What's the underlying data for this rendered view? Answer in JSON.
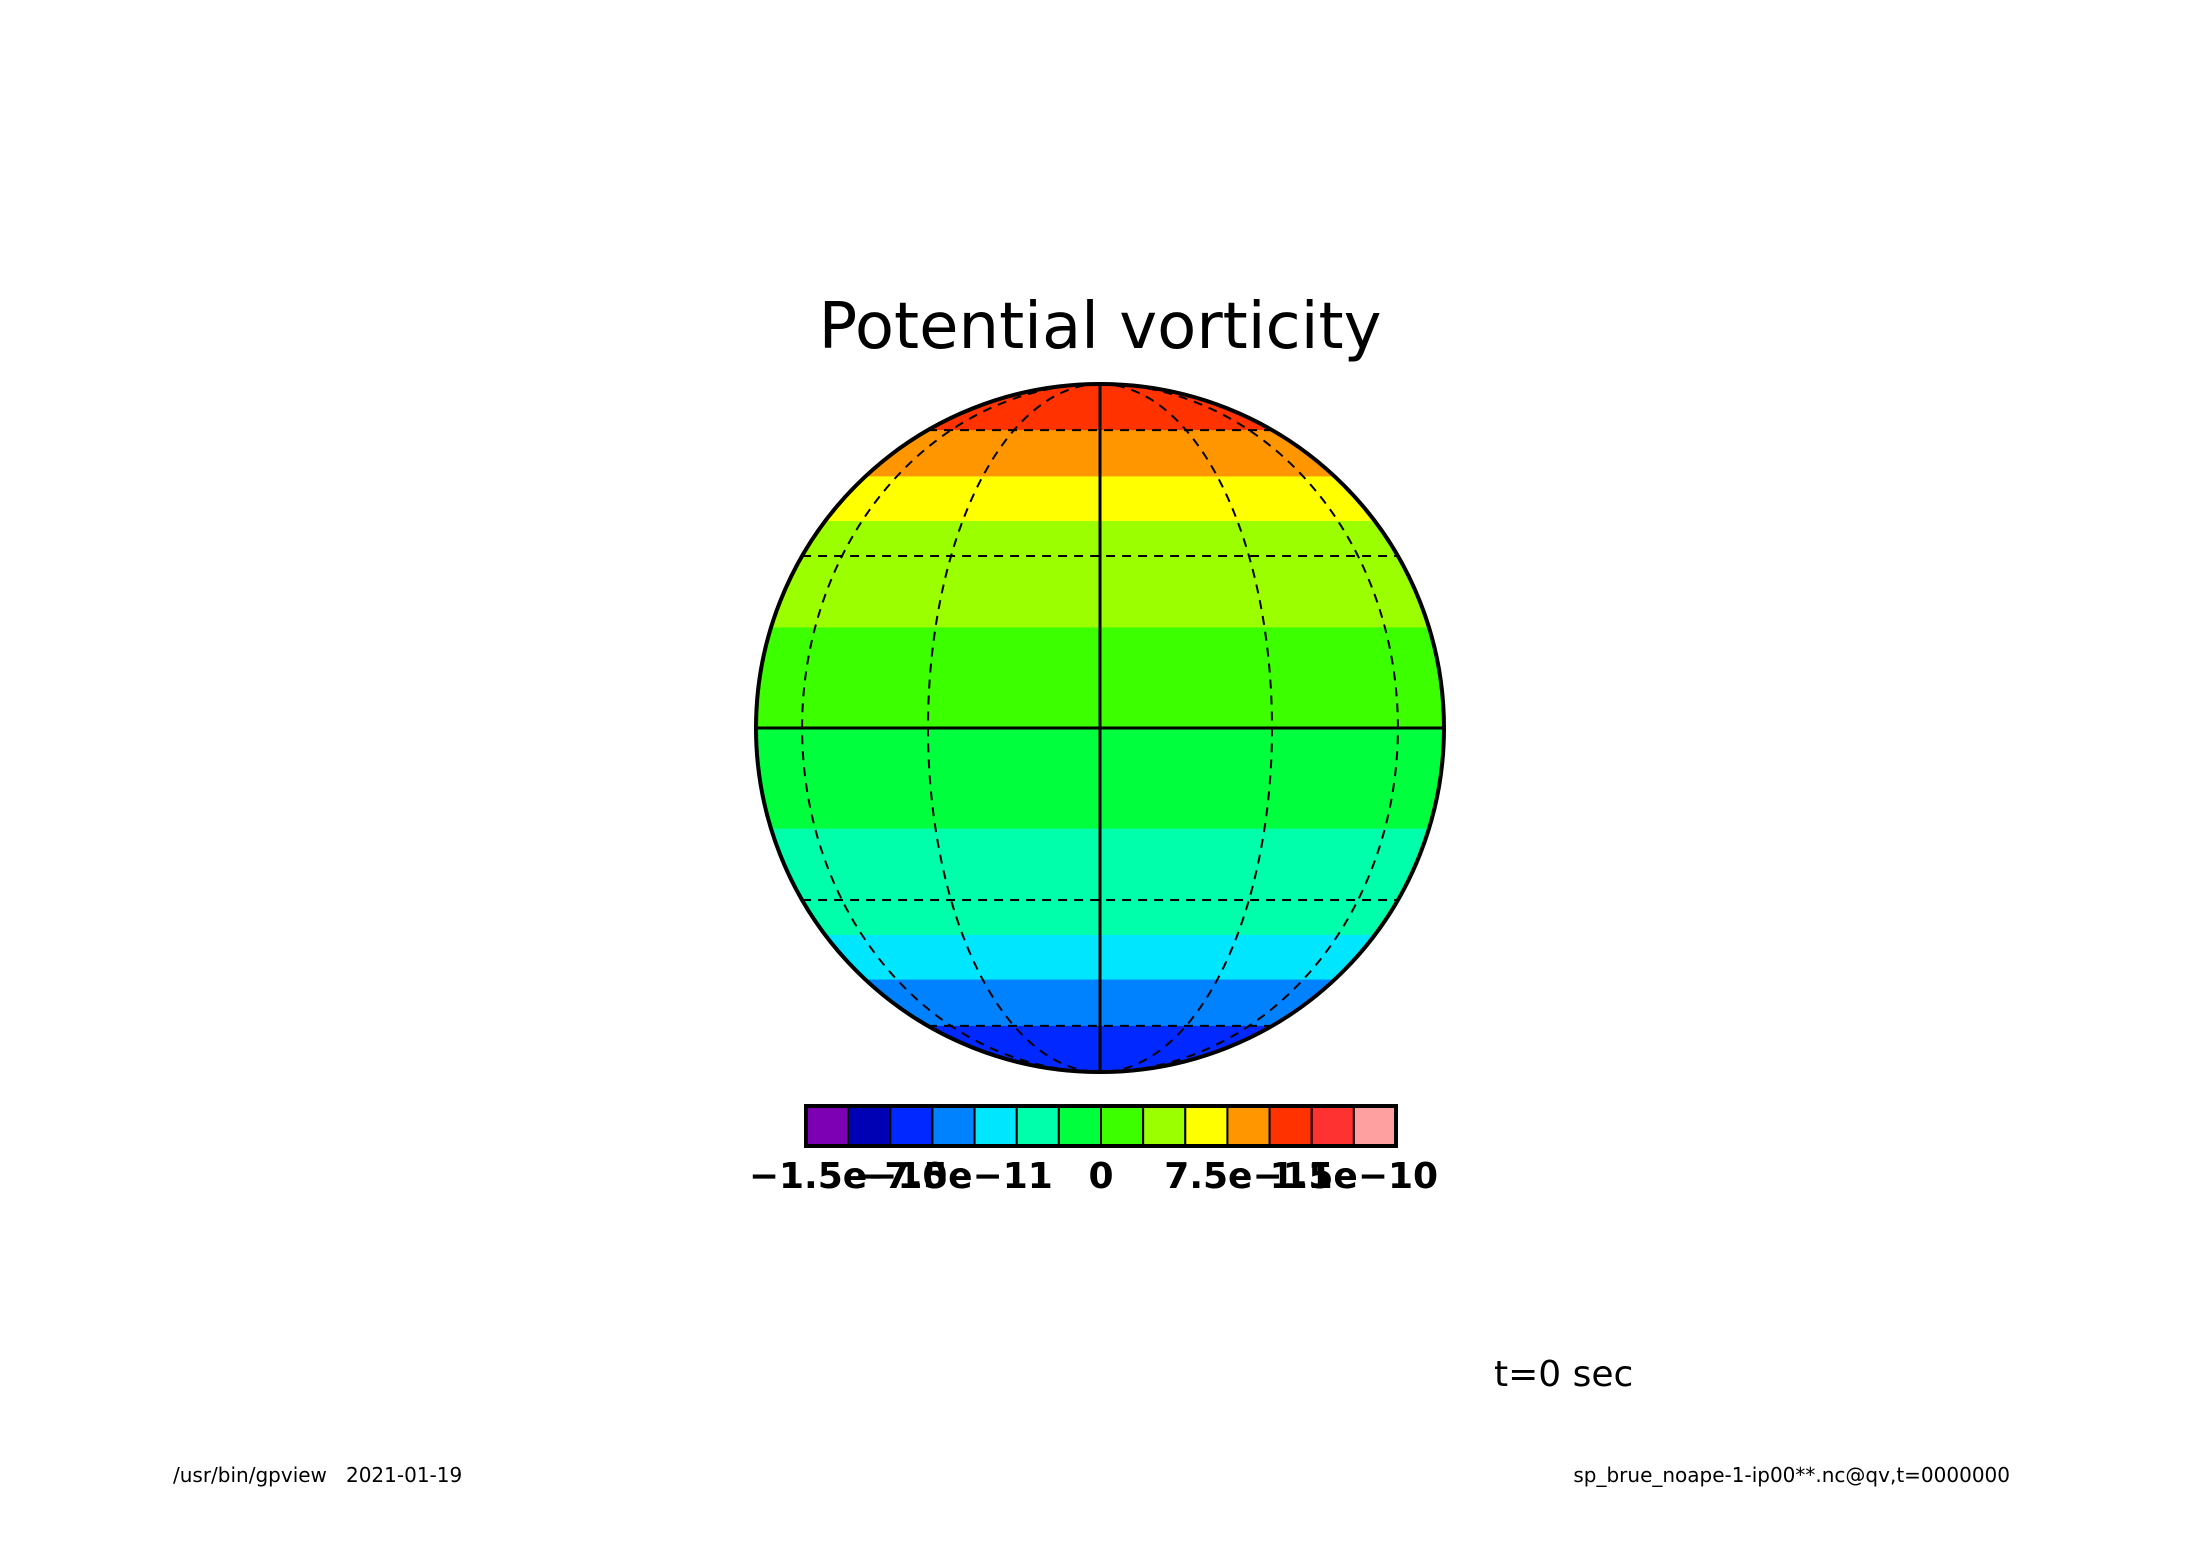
{
  "chart_data": {
    "type": "heatmap",
    "title": "Potential vorticity",
    "projection": "orthographic",
    "field": "zonal bands of potential vorticity (latitude-dependent)",
    "colorbar": {
      "colors": [
        "#7d00b4",
        "#0000b4",
        "#0028ff",
        "#0082ff",
        "#00e6ff",
        "#00ffaa",
        "#00ff3c",
        "#3cff00",
        "#9bff00",
        "#ffff00",
        "#ff9600",
        "#ff3200",
        "#ff3232",
        "#ffa0a0"
      ],
      "tick_labels": [
        {
          "text": "-1.5e-10",
          "boundary": 1
        },
        {
          "text": "-7.5e-11",
          "boundary": 3.5
        },
        {
          "text": "0",
          "boundary": 7
        },
        {
          "text": "7.5e-11",
          "boundary": 10.5
        },
        {
          "text": "1.5e-10",
          "boundary": 13
        }
      ],
      "levels": [
        -1.5e-10,
        1.5e-10
      ]
    },
    "bands": [
      {
        "lat_from": 90,
        "lat_to": 60,
        "color": "#ff3200"
      },
      {
        "lat_from": 60,
        "lat_to": 47,
        "color": "#ff9600"
      },
      {
        "lat_from": 47,
        "lat_to": 37,
        "color": "#ffff00"
      },
      {
        "lat_from": 37,
        "lat_to": 17,
        "color": "#9bff00"
      },
      {
        "lat_from": 17,
        "lat_to": 0,
        "color": "#3cff00"
      },
      {
        "lat_from": 0,
        "lat_to": -17,
        "color": "#00ff3c"
      },
      {
        "lat_from": -17,
        "lat_to": -37,
        "color": "#00ffaa"
      },
      {
        "lat_from": -37,
        "lat_to": -47,
        "color": "#00e6ff"
      },
      {
        "lat_from": -47,
        "lat_to": -60,
        "color": "#0082ff"
      },
      {
        "lat_from": -60,
        "lat_to": -90,
        "color": "#0028ff"
      }
    ],
    "graticule": {
      "latitudes": [
        -60,
        -30,
        30,
        60
      ],
      "longitudes": [
        -60,
        -30,
        30,
        60
      ],
      "solid_equator": true,
      "solid_central_meridian": true
    }
  },
  "annotation": "t=0 sec",
  "footer": {
    "left": "/usr/bin/gpview   2021-01-19",
    "right": "sp_brue_noape-1-ip00**.nc@qv,t=0000000"
  }
}
